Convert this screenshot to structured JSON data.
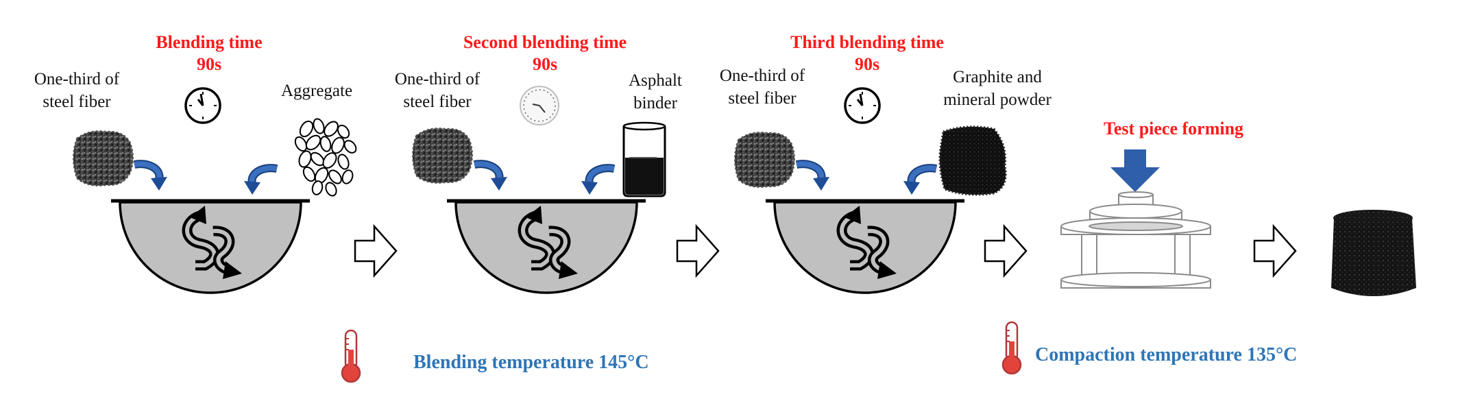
{
  "colors": {
    "accent_red": "#ff1a1a",
    "accent_blue": "#2e75b6",
    "bowl_fill": "#c0c0c0",
    "drop_arrow": "#2e5fa8",
    "press_arrow": "#2f5eaa"
  },
  "steps": [
    {
      "time_title": "Blending time",
      "time_value": "90s",
      "left_label": [
        "One-third of",
        "steel fiber"
      ],
      "right_label": [
        "Aggregate"
      ],
      "left_icon": "steel-fiber-icon",
      "right_icon": "aggregate-icon",
      "clock_icon": "clock-icon"
    },
    {
      "time_title": "Second blending time",
      "time_value": "90s",
      "left_label": [
        "One-third of",
        "steel fiber"
      ],
      "right_label": [
        "Asphalt",
        "binder"
      ],
      "left_icon": "steel-fiber-icon",
      "right_icon": "asphalt-beaker-icon",
      "clock_icon": "clock-icon"
    },
    {
      "time_title": "Third  blending time",
      "time_value": "90s",
      "left_label": [
        "One-third of",
        "steel fiber"
      ],
      "right_label": [
        "Graphite and",
        "mineral powder"
      ],
      "left_icon": "steel-fiber-icon",
      "right_icon": "graphite-powder-icon",
      "clock_icon": "clock-icon"
    }
  ],
  "forming": {
    "title": "Test piece forming",
    "mold_icon": "compaction-mold-icon",
    "press_icon": "press-arrow-icon",
    "specimen_icon": "specimen-icon"
  },
  "temperatures": {
    "blending": "Blending  temperature 145°C",
    "compaction": "Compaction temperature 135°C",
    "icon": "thermometer-icon"
  }
}
